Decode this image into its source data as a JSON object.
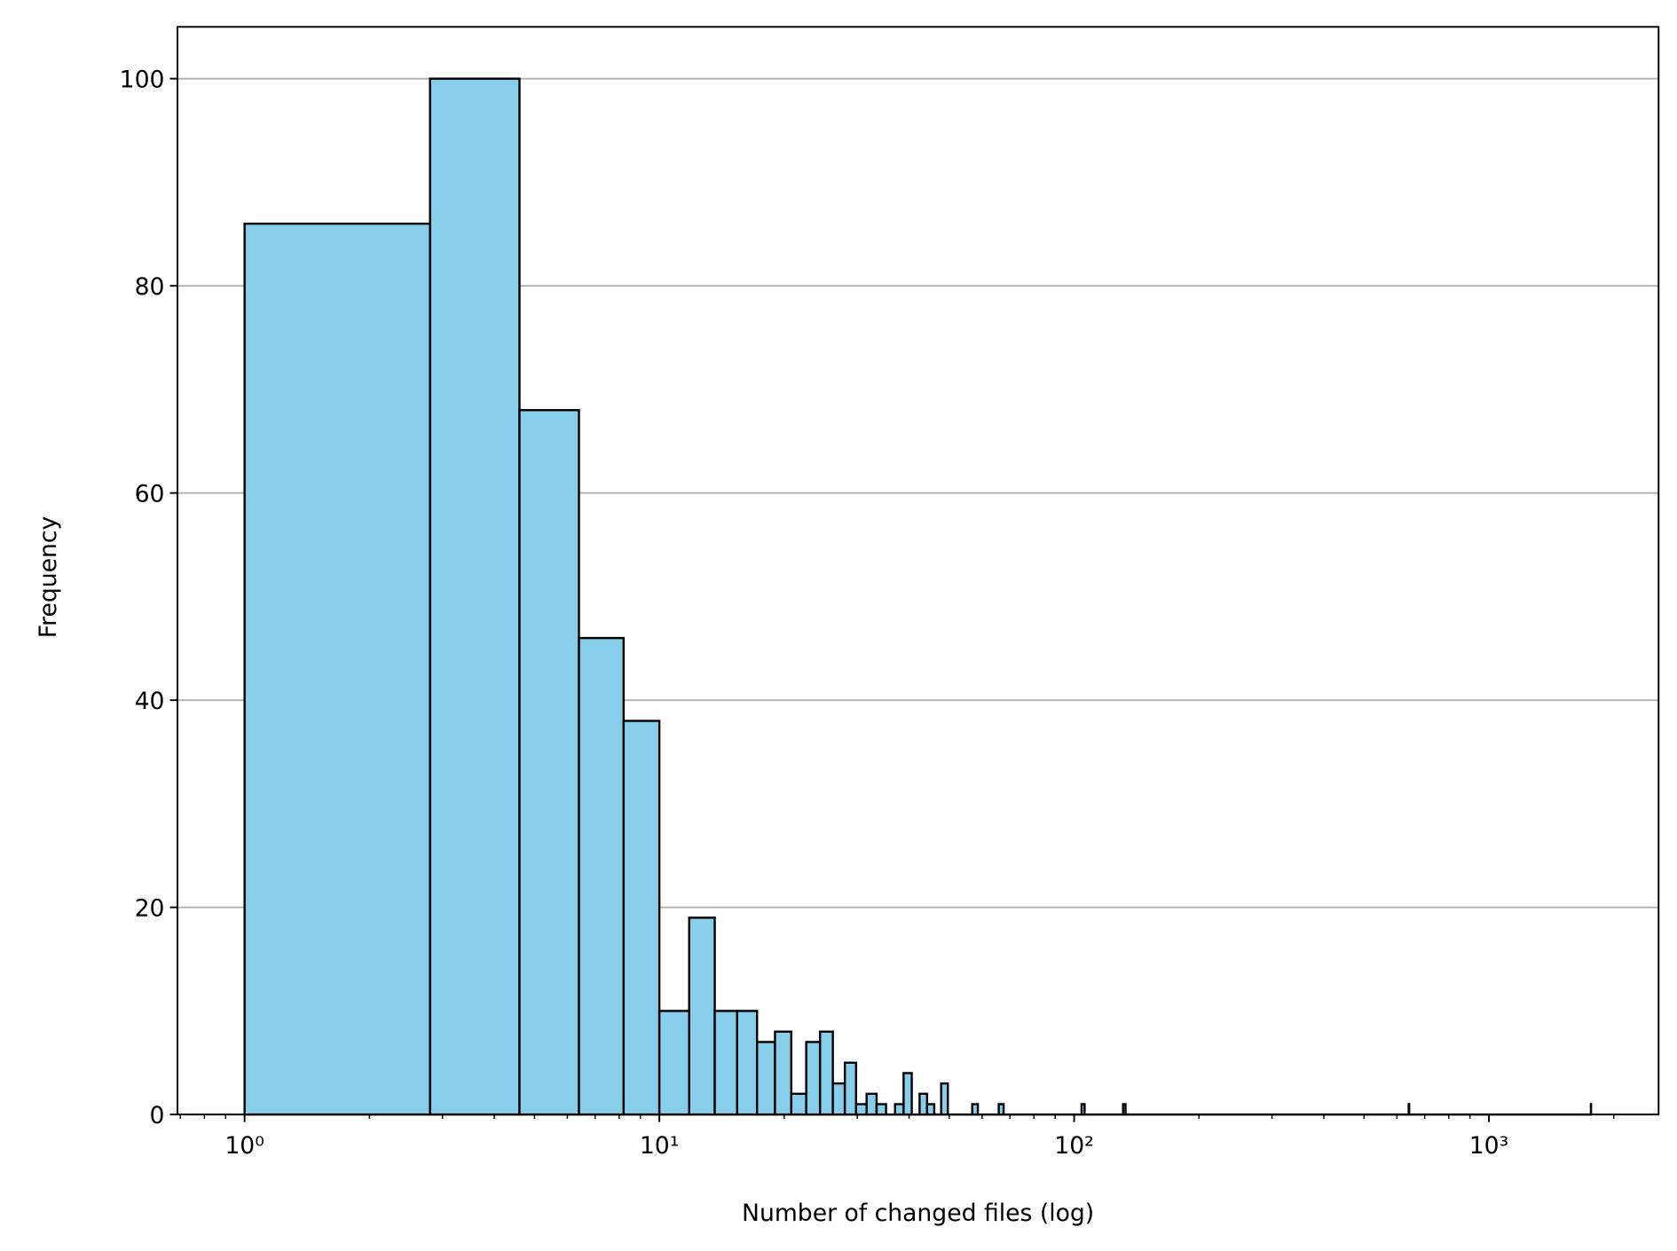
{
  "chart_data": {
    "type": "histogram",
    "x_label": "Number of changed files (log)",
    "y_label": "Frequency",
    "bins": [
      1,
      2.8,
      4.6,
      6.4,
      8.2,
      10,
      11.8,
      13.6,
      15.4,
      17.2,
      19,
      20.8,
      22.6,
      24.4,
      26.2,
      28,
      29.8,
      31.6,
      33.4,
      35.2,
      37,
      38.8,
      40.6,
      42.4,
      44.2,
      46,
      47.8,
      49.6,
      56.8,
      58.6,
      65.8,
      67.6,
      104.2,
      106,
      131.2,
      133,
      640.6,
      642.4,
      1761.4,
      1763.2
    ],
    "counts": [
      86,
      100,
      68,
      46,
      38,
      10,
      19,
      10,
      10,
      7,
      8,
      2,
      7,
      8,
      3,
      5,
      1,
      2,
      1,
      0,
      1,
      4,
      0,
      2,
      1,
      0,
      3,
      0,
      1,
      0,
      1,
      0,
      1,
      0,
      1,
      0,
      1,
      0,
      1
    ],
    "color": "#87ceeb",
    "edge_color": "#000000",
    "x_log_scale": true,
    "minor_ticks": true,
    "xlim": [
      0.689,
      2565
    ],
    "xticks": [
      {
        "value": 1,
        "label": "10⁰"
      },
      {
        "value": 10,
        "label": "10¹"
      },
      {
        "value": 100,
        "label": "10²"
      },
      {
        "value": 1000,
        "label": "10³"
      }
    ],
    "ylim": [
      0,
      105
    ],
    "yticks": [
      0,
      20,
      40,
      60,
      80,
      100
    ],
    "grid": "y"
  }
}
